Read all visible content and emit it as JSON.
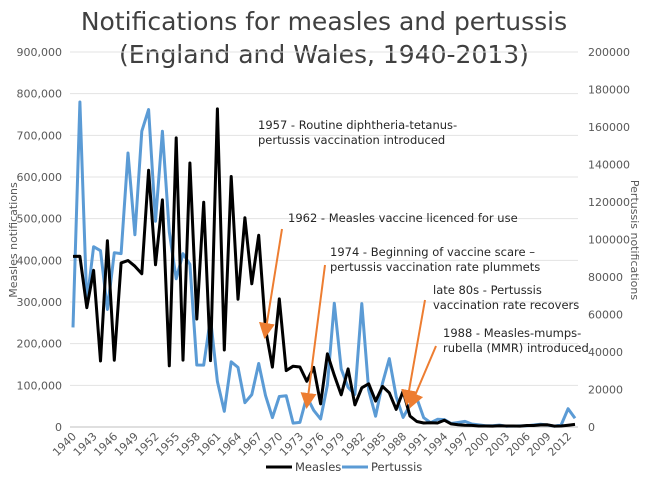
{
  "chart_data": {
    "type": "line",
    "title": [
      "Notifications for measles and pertussis",
      "(England and Wales, 1940-2013)"
    ],
    "xlabel": "",
    "ylabel_left": "Measles notifications",
    "ylabel_right": "Pertussis notifications",
    "ylim_left": [
      0,
      900000
    ],
    "ylim_right": [
      0,
      200000
    ],
    "yticks_left": [
      "0",
      "100,000",
      "200,000",
      "300,000",
      "400,000",
      "500,000",
      "600,000",
      "700,000",
      "800,000",
      "900,000"
    ],
    "yticks_right": [
      "0",
      "20000",
      "40000",
      "60000",
      "80000",
      "100000",
      "120000",
      "140000",
      "160000",
      "180000",
      "200000"
    ],
    "xticks": [
      "1940",
      "1943",
      "1946",
      "1949",
      "1952",
      "1955",
      "1958",
      "1961",
      "1964",
      "1967",
      "1970",
      "1973",
      "1976",
      "1979",
      "1982",
      "1985",
      "1988",
      "1991",
      "1994",
      "1997",
      "2000",
      "2003",
      "2006",
      "2009",
      "2012"
    ],
    "grid": true,
    "legend_position": "bottom",
    "x": [
      1940,
      1941,
      1942,
      1943,
      1944,
      1945,
      1946,
      1947,
      1948,
      1949,
      1950,
      1951,
      1952,
      1953,
      1954,
      1955,
      1956,
      1957,
      1958,
      1959,
      1960,
      1961,
      1962,
      1963,
      1964,
      1965,
      1966,
      1967,
      1968,
      1969,
      1970,
      1971,
      1972,
      1973,
      1974,
      1975,
      1976,
      1977,
      1978,
      1979,
      1980,
      1981,
      1982,
      1983,
      1984,
      1985,
      1986,
      1987,
      1988,
      1989,
      1990,
      1991,
      1992,
      1993,
      1994,
      1995,
      1996,
      1997,
      1998,
      1999,
      2000,
      2001,
      2002,
      2003,
      2004,
      2005,
      2006,
      2007,
      2008,
      2009,
      2010,
      2011,
      2012,
      2013
    ],
    "series": [
      {
        "name": "Measles",
        "axis": "left",
        "color": "#000000",
        "values": [
          409521,
          409715,
          286341,
          376104,
          158479,
          446796,
          160402,
          393787,
          399606,
          385935,
          367725,
          616192,
          389282,
          545050,
          146995,
          693803,
          160556,
          633678,
          259308,
          539524,
          159364,
          763531,
          184895,
          601255,
          306801,
          502209,
          343642,
          460407,
          236154,
          143690,
          307408,
          135241,
          145916,
          144101,
          109636,
          143072,
          55502,
          175714,
          124067,
          77363,
          139487,
          52974,
          94195,
          103700,
          62079,
          97408,
          82054,
          42165,
          86001,
          26222,
          13302,
          9680,
          10268,
          9612,
          16375,
          7447,
          5614,
          3962,
          3728,
          2438,
          2378,
          2250,
          3048,
          2488,
          2356,
          2089,
          3705,
          3670,
          5088,
          5191,
          2235,
          2355,
          4211,
          6193
        ]
      },
      {
        "name": "Pertussis",
        "axis": "right",
        "color": "#5b9bd5",
        "values": [
          53120,
          173330,
          66016,
          96136,
          94044,
          62691,
          92937,
          92499,
          146127,
          102500,
          157781,
          169347,
          109684,
          157751,
          104020,
          79023,
          92404,
          86800,
          33041,
          33034,
          57971,
          24244,
          8347,
          34758,
          31790,
          12945,
          17305,
          33855,
          16829,
          5029,
          16284,
          16616,
          2069,
          2441,
          16230,
          8913,
          4278,
          22348,
          65957,
          30948,
          21180,
          17388,
          65810,
          19586,
          5779,
          23371,
          36506,
          16170,
          5117,
          11646,
          15286,
          4963,
          2309,
          4091,
          3964,
          1869,
          2387,
          2989,
          1577,
          1139,
          716,
          688,
          1026,
          412,
          492,
          594,
          618,
          1089,
          1466,
          1050,
          430,
          1105,
          9741,
          4621
        ]
      }
    ],
    "annotations": [
      {
        "lines": [
          "1957 - Routine diphtheria-tetanus-",
          "pertussis vaccination introduced"
        ],
        "year": 1957
      },
      {
        "lines": [
          "1962 - Measles vaccine licenced for use"
        ],
        "year": 1962
      },
      {
        "lines": [
          "1974 - Beginning of vaccine scare –",
          "pertussis vaccination rate plummets"
        ],
        "year": 1974
      },
      {
        "lines": [
          "late 80s - Pertussis",
          "vaccination rate recovers"
        ],
        "year": 1987
      },
      {
        "lines": [
          "1988 - Measles-mumps-",
          "rubella (MMR) introduced"
        ],
        "year": 1988
      }
    ],
    "arrow_color": "#ed7d31"
  }
}
